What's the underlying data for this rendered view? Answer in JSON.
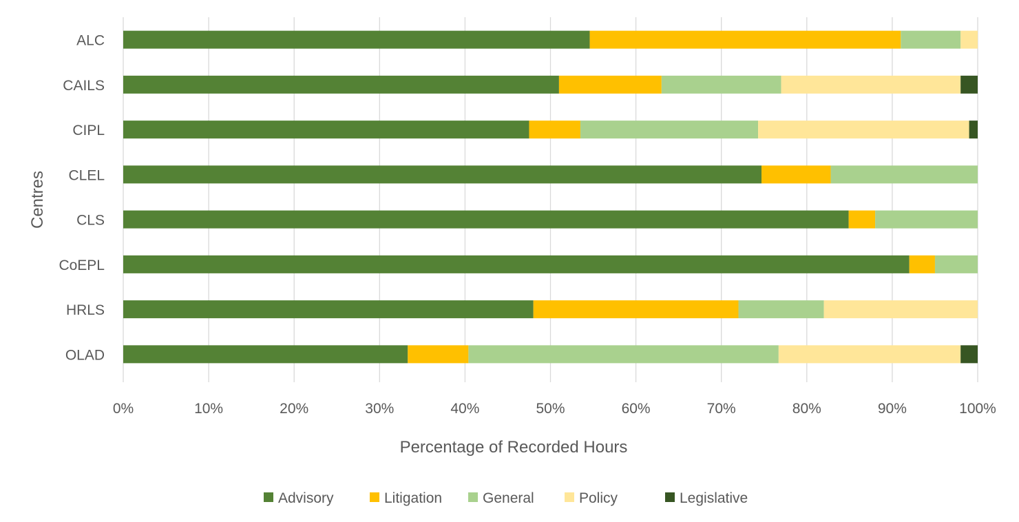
{
  "chart_data": {
    "type": "bar",
    "orientation": "horizontal",
    "stacked": "percent",
    "xlabel": "Percentage of Recorded Hours",
    "ylabel": "Centres",
    "xlim": [
      0,
      100
    ],
    "xticks": [
      "0%",
      "10%",
      "20%",
      "30%",
      "40%",
      "50%",
      "60%",
      "70%",
      "80%",
      "90%",
      "100%"
    ],
    "grid": "vertical",
    "legend_position": "bottom",
    "categories": [
      "ALC",
      "CAILS",
      "CIPL",
      "CLEL",
      "CLS",
      "CoEPL",
      "HRLS",
      "OLAD"
    ],
    "series": [
      {
        "name": "Advisory",
        "color": "#548235",
        "values": [
          54.6,
          51.0,
          47.5,
          74.7,
          84.9,
          92.0,
          48.0,
          33.3
        ]
      },
      {
        "name": "Litigation",
        "color": "#FFC000",
        "values": [
          36.4,
          12.0,
          6.0,
          8.1,
          3.1,
          3.0,
          24.0,
          7.1
        ]
      },
      {
        "name": "General",
        "color": "#A9D18E",
        "values": [
          7.0,
          14.0,
          20.8,
          17.2,
          12.0,
          5.0,
          10.0,
          36.3
        ]
      },
      {
        "name": "Policy",
        "color": "#FFE699",
        "values": [
          2.0,
          21.0,
          24.7,
          0,
          0,
          0,
          18.0,
          21.3
        ]
      },
      {
        "name": "Legislative",
        "color": "#375623",
        "values": [
          0,
          2.0,
          1.0,
          0,
          0,
          0,
          0,
          2.0
        ]
      }
    ]
  }
}
